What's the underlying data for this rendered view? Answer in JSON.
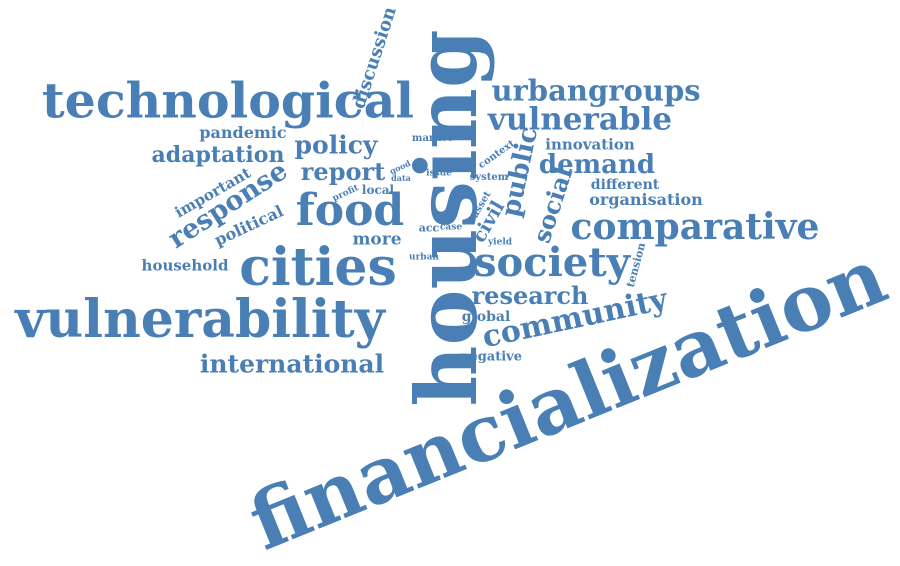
{
  "theme": {
    "word_color": "#4a7fb5",
    "background": "#ffffff"
  },
  "words": {
    "financialization": "financialization",
    "housing": "housing",
    "technological": "technological",
    "vulnerability": "vulnerability",
    "cities": "cities",
    "food": "food",
    "society": "society",
    "comparative": "comparative",
    "vulnerable": "vulnerable",
    "urbangroups": "urbangroups",
    "community": "community",
    "international": "international",
    "research": "research",
    "response": "response",
    "adaptation": "adaptation",
    "policy": "policy",
    "report": "report",
    "demand": "demand",
    "public": "public",
    "social": "social",
    "discussion": "discussion",
    "organisation": "organisation",
    "innovation": "innovation",
    "different": "different",
    "pandemic": "pandemic",
    "important": "important",
    "political": "political",
    "household": "household",
    "more": "more",
    "civil": "civil",
    "global": "global",
    "negative": "negative",
    "tension": "tension",
    "market": "market",
    "context": "context",
    "local": "local",
    "system": "system",
    "issue": "issue",
    "good": "good",
    "data": "data",
    "profit": "profit",
    "asset": "asset",
    "acc": "acc",
    "case": "case",
    "urban": "urban",
    "yield": "yield"
  }
}
